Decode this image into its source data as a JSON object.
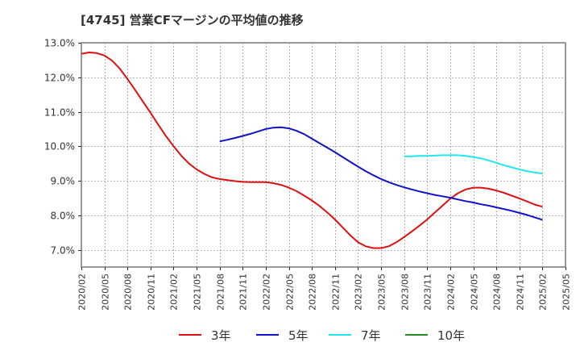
{
  "title": "[4745]  営業CFマージンの平均値の推移",
  "chart_data": {
    "type": "line",
    "title": "[4745]  営業CFマージンの平均値の推移",
    "xlabel": "",
    "ylabel": "",
    "ylim": [
      6.5,
      13.0
    ],
    "yticks": [
      7.0,
      8.0,
      9.0,
      10.0,
      11.0,
      12.0,
      13.0
    ],
    "ytick_labels": [
      "7.0%",
      "8.0%",
      "9.0%",
      "10.0%",
      "11.0%",
      "12.0%",
      "13.0%"
    ],
    "xticks": [
      "2020/02",
      "2020/05",
      "2020/08",
      "2020/11",
      "2021/02",
      "2021/05",
      "2021/08",
      "2021/11",
      "2022/02",
      "2022/05",
      "2022/08",
      "2022/11",
      "2023/02",
      "2023/05",
      "2023/08",
      "2023/11",
      "2024/02",
      "2024/05",
      "2024/08",
      "2024/11",
      "2025/02",
      "2025/05"
    ],
    "grid": true,
    "legend_position": "bottom",
    "series": [
      {
        "name": "3年",
        "color": "#dd1111",
        "points": [
          [
            "2020/02",
            12.68
          ],
          [
            "2020/03",
            12.72
          ],
          [
            "2020/04",
            12.7
          ],
          [
            "2020/05",
            12.63
          ],
          [
            "2020/06",
            12.48
          ],
          [
            "2020/07",
            12.25
          ],
          [
            "2020/08",
            11.95
          ],
          [
            "2020/09",
            11.63
          ],
          [
            "2020/10",
            11.3
          ],
          [
            "2020/11",
            10.97
          ],
          [
            "2020/12",
            10.63
          ],
          [
            "2021/01",
            10.3
          ],
          [
            "2021/02",
            10.0
          ],
          [
            "2021/03",
            9.73
          ],
          [
            "2021/04",
            9.5
          ],
          [
            "2021/05",
            9.33
          ],
          [
            "2021/06",
            9.2
          ],
          [
            "2021/07",
            9.1
          ],
          [
            "2021/08",
            9.05
          ],
          [
            "2021/09",
            9.02
          ],
          [
            "2021/10",
            8.99
          ],
          [
            "2021/11",
            8.97
          ],
          [
            "2021/12",
            8.96
          ],
          [
            "2022/01",
            8.96
          ],
          [
            "2022/02",
            8.96
          ],
          [
            "2022/03",
            8.93
          ],
          [
            "2022/04",
            8.88
          ],
          [
            "2022/05",
            8.8
          ],
          [
            "2022/06",
            8.7
          ],
          [
            "2022/07",
            8.57
          ],
          [
            "2022/08",
            8.43
          ],
          [
            "2022/09",
            8.27
          ],
          [
            "2022/10",
            8.08
          ],
          [
            "2022/11",
            7.88
          ],
          [
            "2022/12",
            7.65
          ],
          [
            "2023/01",
            7.42
          ],
          [
            "2023/02",
            7.22
          ],
          [
            "2023/03",
            7.1
          ],
          [
            "2023/04",
            7.05
          ],
          [
            "2023/05",
            7.05
          ],
          [
            "2023/06",
            7.1
          ],
          [
            "2023/07",
            7.22
          ],
          [
            "2023/08",
            7.37
          ],
          [
            "2023/09",
            7.53
          ],
          [
            "2023/10",
            7.7
          ],
          [
            "2023/11",
            7.88
          ],
          [
            "2023/12",
            8.08
          ],
          [
            "2024/01",
            8.28
          ],
          [
            "2024/02",
            8.48
          ],
          [
            "2024/03",
            8.64
          ],
          [
            "2024/04",
            8.75
          ],
          [
            "2024/05",
            8.8
          ],
          [
            "2024/06",
            8.8
          ],
          [
            "2024/07",
            8.77
          ],
          [
            "2024/08",
            8.72
          ],
          [
            "2024/09",
            8.65
          ],
          [
            "2024/10",
            8.57
          ],
          [
            "2024/11",
            8.49
          ],
          [
            "2024/12",
            8.4
          ],
          [
            "2025/01",
            8.31
          ],
          [
            "2025/02",
            8.25
          ]
        ]
      },
      {
        "name": "5年",
        "color": "#1111cc",
        "points": [
          [
            "2021/08",
            10.14
          ],
          [
            "2021/09",
            10.19
          ],
          [
            "2021/10",
            10.24
          ],
          [
            "2021/11",
            10.3
          ],
          [
            "2021/12",
            10.36
          ],
          [
            "2022/01",
            10.43
          ],
          [
            "2022/02",
            10.5
          ],
          [
            "2022/03",
            10.54
          ],
          [
            "2022/04",
            10.55
          ],
          [
            "2022/05",
            10.52
          ],
          [
            "2022/06",
            10.45
          ],
          [
            "2022/07",
            10.35
          ],
          [
            "2022/08",
            10.22
          ],
          [
            "2022/09",
            10.09
          ],
          [
            "2022/10",
            9.96
          ],
          [
            "2022/11",
            9.83
          ],
          [
            "2022/12",
            9.69
          ],
          [
            "2023/01",
            9.55
          ],
          [
            "2023/02",
            9.41
          ],
          [
            "2023/03",
            9.28
          ],
          [
            "2023/04",
            9.16
          ],
          [
            "2023/05",
            9.05
          ],
          [
            "2023/06",
            8.96
          ],
          [
            "2023/07",
            8.88
          ],
          [
            "2023/08",
            8.81
          ],
          [
            "2023/09",
            8.75
          ],
          [
            "2023/10",
            8.69
          ],
          [
            "2023/11",
            8.64
          ],
          [
            "2023/12",
            8.59
          ],
          [
            "2024/01",
            8.55
          ],
          [
            "2024/02",
            8.51
          ],
          [
            "2024/03",
            8.46
          ],
          [
            "2024/04",
            8.41
          ],
          [
            "2024/05",
            8.37
          ],
          [
            "2024/06",
            8.32
          ],
          [
            "2024/07",
            8.28
          ],
          [
            "2024/08",
            8.23
          ],
          [
            "2024/09",
            8.18
          ],
          [
            "2024/10",
            8.13
          ],
          [
            "2024/11",
            8.07
          ],
          [
            "2024/12",
            8.01
          ],
          [
            "2025/01",
            7.94
          ],
          [
            "2025/02",
            7.87
          ]
        ]
      },
      {
        "name": "7年",
        "color": "#22e5ee",
        "points": [
          [
            "2023/08",
            9.71
          ],
          [
            "2023/09",
            9.71
          ],
          [
            "2023/10",
            9.72
          ],
          [
            "2023/11",
            9.72
          ],
          [
            "2023/12",
            9.73
          ],
          [
            "2024/01",
            9.74
          ],
          [
            "2024/02",
            9.74
          ],
          [
            "2024/03",
            9.74
          ],
          [
            "2024/04",
            9.72
          ],
          [
            "2024/05",
            9.69
          ],
          [
            "2024/06",
            9.65
          ],
          [
            "2024/07",
            9.59
          ],
          [
            "2024/08",
            9.52
          ],
          [
            "2024/09",
            9.45
          ],
          [
            "2024/10",
            9.39
          ],
          [
            "2024/11",
            9.33
          ],
          [
            "2024/12",
            9.28
          ],
          [
            "2025/01",
            9.24
          ],
          [
            "2025/02",
            9.21
          ]
        ]
      },
      {
        "name": "10年",
        "color": "#228b22",
        "points": []
      }
    ]
  }
}
